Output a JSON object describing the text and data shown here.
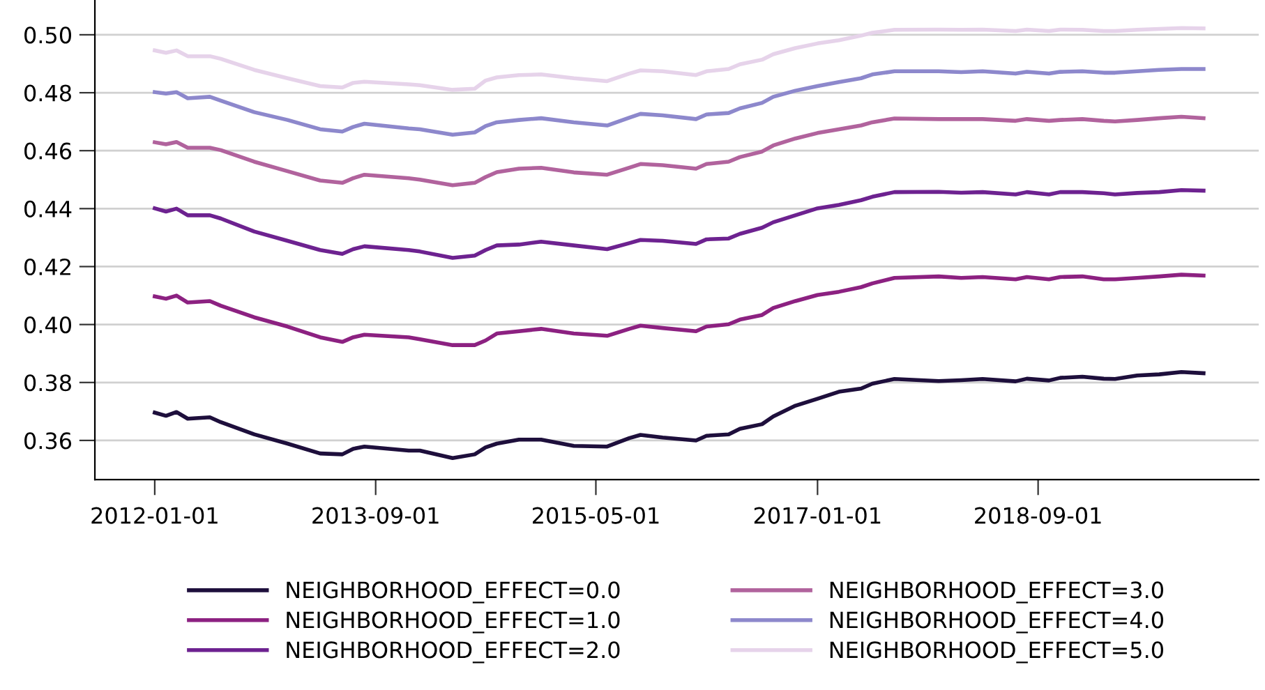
{
  "chart_data": {
    "type": "line",
    "x": [
      "2012-01-01",
      "2012-02-01",
      "2012-03-01",
      "2012-04-01",
      "2012-06-01",
      "2012-07-01",
      "2012-10-01",
      "2013-01-01",
      "2013-04-01",
      "2013-06-01",
      "2013-07-01",
      "2013-08-01",
      "2013-12-01",
      "2014-01-01",
      "2014-04-01",
      "2014-06-01",
      "2014-07-01",
      "2014-08-01",
      "2014-10-01",
      "2014-12-01",
      "2015-03-01",
      "2015-06-01",
      "2015-08-01",
      "2015-09-01",
      "2015-11-01",
      "2016-02-01",
      "2016-03-01",
      "2016-05-01",
      "2016-06-01",
      "2016-08-01",
      "2016-09-01",
      "2016-11-01",
      "2017-01-01",
      "2017-03-01",
      "2017-05-01",
      "2017-06-01",
      "2017-08-01",
      "2017-12-01",
      "2018-02-01",
      "2018-04-01",
      "2018-07-01",
      "2018-08-01",
      "2018-10-01",
      "2018-11-01",
      "2019-01-01",
      "2019-03-01",
      "2019-04-01",
      "2019-06-01",
      "2019-08-01",
      "2019-10-01",
      "2019-12-01"
    ],
    "series": [
      {
        "name": "NEIGHBORHOOD_EFFECT=0.0",
        "color": "#1e0f3c",
        "values": [
          0.3696,
          0.3685,
          0.3698,
          0.3675,
          0.368,
          0.3663,
          0.3621,
          0.3589,
          0.3555,
          0.3552,
          0.3571,
          0.3579,
          0.3565,
          0.3565,
          0.3539,
          0.3552,
          0.3576,
          0.3589,
          0.3603,
          0.3603,
          0.3581,
          0.3579,
          0.3608,
          0.3619,
          0.361,
          0.36,
          0.3616,
          0.3621,
          0.364,
          0.3656,
          0.3683,
          0.372,
          0.3744,
          0.3768,
          0.3779,
          0.3796,
          0.3812,
          0.3805,
          0.3808,
          0.3812,
          0.3804,
          0.3813,
          0.3807,
          0.3816,
          0.382,
          0.3813,
          0.3812,
          0.3824,
          0.3828,
          0.3836,
          0.3832
        ]
      },
      {
        "name": "NEIGHBORHOOD_EFFECT=1.0",
        "color": "#8c2181",
        "values": [
          0.4097,
          0.4089,
          0.41,
          0.4076,
          0.4081,
          0.4065,
          0.4025,
          0.3993,
          0.3956,
          0.394,
          0.3956,
          0.3965,
          0.3956,
          0.3949,
          0.3929,
          0.3929,
          0.3945,
          0.3969,
          0.3977,
          0.3985,
          0.3969,
          0.3961,
          0.3985,
          0.3996,
          0.3988,
          0.3977,
          0.3993,
          0.4001,
          0.4017,
          0.4033,
          0.4057,
          0.4081,
          0.4102,
          0.4113,
          0.4129,
          0.4142,
          0.4161,
          0.4166,
          0.4161,
          0.4164,
          0.4156,
          0.4164,
          0.4156,
          0.4164,
          0.4166,
          0.4156,
          0.4156,
          0.4161,
          0.4166,
          0.4172,
          0.4169
        ]
      },
      {
        "name": "NEIGHBORHOOD_EFFECT=2.0",
        "color": "#6d2290",
        "values": [
          0.4401,
          0.439,
          0.44,
          0.4377,
          0.4377,
          0.4366,
          0.4321,
          0.4289,
          0.4257,
          0.4244,
          0.426,
          0.427,
          0.4257,
          0.4252,
          0.423,
          0.4238,
          0.4257,
          0.4273,
          0.4276,
          0.4286,
          0.4273,
          0.426,
          0.4281,
          0.4292,
          0.4289,
          0.4278,
          0.4294,
          0.4297,
          0.4313,
          0.4334,
          0.4353,
          0.4377,
          0.4401,
          0.4413,
          0.4429,
          0.4441,
          0.4457,
          0.4458,
          0.4455,
          0.4457,
          0.4449,
          0.4457,
          0.4449,
          0.4457,
          0.4457,
          0.4453,
          0.4449,
          0.4454,
          0.4457,
          0.4464,
          0.4462
        ]
      },
      {
        "name": "NEIGHBORHOOD_EFFECT=3.0",
        "color": "#b1639d",
        "values": [
          0.4629,
          0.4622,
          0.463,
          0.461,
          0.461,
          0.4602,
          0.4562,
          0.4529,
          0.4497,
          0.4489,
          0.4505,
          0.4517,
          0.4505,
          0.45,
          0.4481,
          0.4489,
          0.4509,
          0.4526,
          0.4538,
          0.4541,
          0.4525,
          0.4517,
          0.4541,
          0.4554,
          0.455,
          0.4538,
          0.4554,
          0.4562,
          0.4578,
          0.4597,
          0.4618,
          0.4642,
          0.4661,
          0.4674,
          0.4687,
          0.4698,
          0.4711,
          0.4709,
          0.4709,
          0.4709,
          0.4703,
          0.4709,
          0.4703,
          0.4706,
          0.4709,
          0.4703,
          0.4701,
          0.4706,
          0.4712,
          0.4717,
          0.4712
        ]
      },
      {
        "name": "NEIGHBORHOOD_EFFECT=4.0",
        "color": "#8d88cc",
        "values": [
          0.4802,
          0.4797,
          0.4802,
          0.4781,
          0.4786,
          0.4773,
          0.4733,
          0.4706,
          0.4674,
          0.4666,
          0.4682,
          0.4693,
          0.4677,
          0.4674,
          0.4655,
          0.4663,
          0.4685,
          0.4698,
          0.4706,
          0.4712,
          0.4698,
          0.4687,
          0.4714,
          0.4727,
          0.4722,
          0.4709,
          0.4725,
          0.473,
          0.4746,
          0.4765,
          0.4786,
          0.4807,
          0.4823,
          0.4837,
          0.485,
          0.4863,
          0.4874,
          0.4874,
          0.4871,
          0.4874,
          0.4866,
          0.4872,
          0.4866,
          0.4872,
          0.4874,
          0.4869,
          0.4869,
          0.4874,
          0.4879,
          0.4882,
          0.4882
        ]
      },
      {
        "name": "NEIGHBORHOOD_EFFECT=5.0",
        "color": "#e6d3ea",
        "values": [
          0.4946,
          0.4938,
          0.4946,
          0.4926,
          0.4926,
          0.4917,
          0.4879,
          0.485,
          0.4823,
          0.4818,
          0.4834,
          0.4838,
          0.4829,
          0.4826,
          0.481,
          0.4814,
          0.4842,
          0.4853,
          0.4861,
          0.4863,
          0.485,
          0.484,
          0.4866,
          0.4877,
          0.4874,
          0.4861,
          0.4874,
          0.4882,
          0.4898,
          0.4914,
          0.4933,
          0.4954,
          0.497,
          0.4981,
          0.4997,
          0.5007,
          0.5017,
          0.5018,
          0.5017,
          0.5018,
          0.5013,
          0.5018,
          0.5013,
          0.5018,
          0.5017,
          0.5013,
          0.5013,
          0.5017,
          0.502,
          0.5023,
          0.5022
        ]
      }
    ],
    "xlim": [
      "2011-07-20",
      "2020-05-01"
    ],
    "xticks": [
      "2012-01-01",
      "2013-09-01",
      "2015-05-01",
      "2017-01-01",
      "2018-09-01"
    ],
    "ylim": [
      0.3465,
      0.512
    ],
    "yticks": [
      {
        "value": 0.36,
        "label": "0.36"
      },
      {
        "value": 0.38,
        "label": "0.38"
      },
      {
        "value": 0.4,
        "label": "0.40"
      },
      {
        "value": 0.42,
        "label": "0.42"
      },
      {
        "value": 0.44,
        "label": "0.44"
      },
      {
        "value": 0.46,
        "label": "0.46"
      },
      {
        "value": 0.48,
        "label": "0.48"
      },
      {
        "value": 0.5,
        "label": "0.50"
      }
    ],
    "grid": "y",
    "legend": "bottom",
    "marker": "none",
    "line_style": "solid"
  }
}
